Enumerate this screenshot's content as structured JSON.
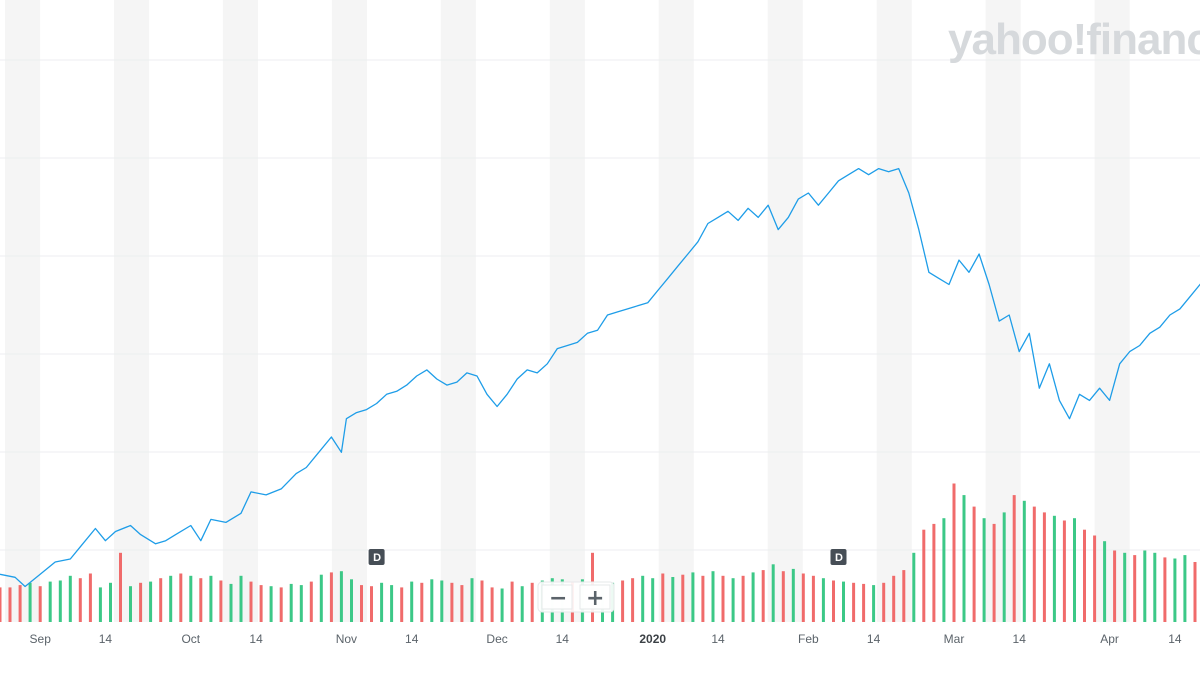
{
  "watermark": "yahoo!finance",
  "colors": {
    "price_line": "#1e9de8",
    "volume_up": "#3cc887",
    "volume_down": "#f06b6b",
    "band": "#f5f5f5",
    "grid": "#eceef0"
  },
  "controls": {
    "zoom_out": "−",
    "zoom_in": "+"
  },
  "events": [
    {
      "label": "D",
      "date": "2019-11-07"
    },
    {
      "label": "D",
      "date": "2020-02-07"
    }
  ],
  "chart_data": {
    "type": "line",
    "subtype": "price_with_volume",
    "title": "",
    "xlabel": "",
    "ylabel": "",
    "grid": true,
    "x_ticks": [
      {
        "label": "Sep",
        "date": "2019-09-01",
        "bold": false
      },
      {
        "label": "14",
        "date": "2019-09-14",
        "bold": false
      },
      {
        "label": "Oct",
        "date": "2019-10-01",
        "bold": false
      },
      {
        "label": "14",
        "date": "2019-10-14",
        "bold": false
      },
      {
        "label": "Nov",
        "date": "2019-11-01",
        "bold": false
      },
      {
        "label": "14",
        "date": "2019-11-14",
        "bold": false
      },
      {
        "label": "Dec",
        "date": "2019-12-01",
        "bold": false
      },
      {
        "label": "14",
        "date": "2019-12-14",
        "bold": false
      },
      {
        "label": "2020",
        "date": "2020-01-01",
        "bold": true
      },
      {
        "label": "14",
        "date": "2020-01-14",
        "bold": false
      },
      {
        "label": "Feb",
        "date": "2020-02-01",
        "bold": false
      },
      {
        "label": "14",
        "date": "2020-02-14",
        "bold": false
      },
      {
        "label": "Mar",
        "date": "2020-03-01",
        "bold": false
      },
      {
        "label": "14",
        "date": "2020-03-14",
        "bold": false
      },
      {
        "label": "Apr",
        "date": "2020-04-01",
        "bold": false
      },
      {
        "label": "14",
        "date": "2020-04-14",
        "bold": false
      }
    ],
    "price_series": [
      [
        "2019-08-24",
        0.075
      ],
      [
        "2019-08-27",
        0.07
      ],
      [
        "2019-08-29",
        0.055
      ],
      [
        "2019-09-01",
        0.075
      ],
      [
        "2019-09-04",
        0.095
      ],
      [
        "2019-09-07",
        0.1
      ],
      [
        "2019-09-09",
        0.12
      ],
      [
        "2019-09-12",
        0.15
      ],
      [
        "2019-09-14",
        0.13
      ],
      [
        "2019-09-16",
        0.145
      ],
      [
        "2019-09-19",
        0.155
      ],
      [
        "2019-09-21",
        0.14
      ],
      [
        "2019-09-24",
        0.125
      ],
      [
        "2019-09-26",
        0.13
      ],
      [
        "2019-09-28",
        0.14
      ],
      [
        "2019-10-01",
        0.155
      ],
      [
        "2019-10-03",
        0.13
      ],
      [
        "2019-10-05",
        0.165
      ],
      [
        "2019-10-08",
        0.16
      ],
      [
        "2019-10-11",
        0.175
      ],
      [
        "2019-10-13",
        0.21
      ],
      [
        "2019-10-16",
        0.205
      ],
      [
        "2019-10-19",
        0.215
      ],
      [
        "2019-10-22",
        0.24
      ],
      [
        "2019-10-24",
        0.25
      ],
      [
        "2019-10-26",
        0.27
      ],
      [
        "2019-10-29",
        0.3
      ],
      [
        "2019-10-31",
        0.275
      ],
      [
        "2019-11-01",
        0.33
      ],
      [
        "2019-11-03",
        0.34
      ],
      [
        "2019-11-05",
        0.345
      ],
      [
        "2019-11-07",
        0.355
      ],
      [
        "2019-11-09",
        0.37
      ],
      [
        "2019-11-11",
        0.375
      ],
      [
        "2019-11-13",
        0.385
      ],
      [
        "2019-11-15",
        0.4
      ],
      [
        "2019-11-17",
        0.41
      ],
      [
        "2019-11-19",
        0.395
      ],
      [
        "2019-11-21",
        0.385
      ],
      [
        "2019-11-23",
        0.39
      ],
      [
        "2019-11-25",
        0.405
      ],
      [
        "2019-11-27",
        0.4
      ],
      [
        "2019-11-29",
        0.37
      ],
      [
        "2019-12-01",
        0.35
      ],
      [
        "2019-12-03",
        0.37
      ],
      [
        "2019-12-05",
        0.395
      ],
      [
        "2019-12-07",
        0.41
      ],
      [
        "2019-12-09",
        0.405
      ],
      [
        "2019-12-11",
        0.42
      ],
      [
        "2019-12-13",
        0.445
      ],
      [
        "2019-12-15",
        0.45
      ],
      [
        "2019-12-17",
        0.455
      ],
      [
        "2019-12-19",
        0.47
      ],
      [
        "2019-12-21",
        0.475
      ],
      [
        "2019-12-23",
        0.5
      ],
      [
        "2019-12-25",
        0.505
      ],
      [
        "2019-12-27",
        0.51
      ],
      [
        "2019-12-29",
        0.515
      ],
      [
        "2019-12-31",
        0.52
      ],
      [
        "2020-01-02",
        0.54
      ],
      [
        "2020-01-04",
        0.56
      ],
      [
        "2020-01-06",
        0.58
      ],
      [
        "2020-01-08",
        0.6
      ],
      [
        "2020-01-10",
        0.62
      ],
      [
        "2020-01-12",
        0.65
      ],
      [
        "2020-01-14",
        0.66
      ],
      [
        "2020-01-16",
        0.67
      ],
      [
        "2020-01-18",
        0.655
      ],
      [
        "2020-01-20",
        0.675
      ],
      [
        "2020-01-22",
        0.66
      ],
      [
        "2020-01-24",
        0.68
      ],
      [
        "2020-01-26",
        0.64
      ],
      [
        "2020-01-28",
        0.66
      ],
      [
        "2020-01-30",
        0.69
      ],
      [
        "2020-02-01",
        0.7
      ],
      [
        "2020-02-03",
        0.68
      ],
      [
        "2020-02-05",
        0.7
      ],
      [
        "2020-02-07",
        0.72
      ],
      [
        "2020-02-09",
        0.73
      ],
      [
        "2020-02-11",
        0.74
      ],
      [
        "2020-02-13",
        0.73
      ],
      [
        "2020-02-15",
        0.74
      ],
      [
        "2020-02-17",
        0.735
      ],
      [
        "2020-02-19",
        0.74
      ],
      [
        "2020-02-21",
        0.7
      ],
      [
        "2020-02-23",
        0.64
      ],
      [
        "2020-02-25",
        0.57
      ],
      [
        "2020-02-27",
        0.56
      ],
      [
        "2020-02-29",
        0.55
      ],
      [
        "2020-03-02",
        0.59
      ],
      [
        "2020-03-04",
        0.57
      ],
      [
        "2020-03-06",
        0.6
      ],
      [
        "2020-03-08",
        0.55
      ],
      [
        "2020-03-10",
        0.49
      ],
      [
        "2020-03-12",
        0.5
      ],
      [
        "2020-03-14",
        0.44
      ],
      [
        "2020-03-16",
        0.47
      ],
      [
        "2020-03-18",
        0.38
      ],
      [
        "2020-03-20",
        0.42
      ],
      [
        "2020-03-22",
        0.36
      ],
      [
        "2020-03-24",
        0.33
      ],
      [
        "2020-03-26",
        0.37
      ],
      [
        "2020-03-28",
        0.36
      ],
      [
        "2020-03-30",
        0.38
      ],
      [
        "2020-04-01",
        0.36
      ],
      [
        "2020-04-03",
        0.42
      ],
      [
        "2020-04-05",
        0.44
      ],
      [
        "2020-04-07",
        0.45
      ],
      [
        "2020-04-09",
        0.47
      ],
      [
        "2020-04-11",
        0.48
      ],
      [
        "2020-04-13",
        0.5
      ],
      [
        "2020-04-15",
        0.51
      ],
      [
        "2020-04-17",
        0.53
      ],
      [
        "2020-04-19",
        0.55
      ],
      [
        "2020-04-21",
        0.57
      ],
      [
        "2020-04-22",
        0.6
      ]
    ],
    "price_range": [
      0,
      1
    ],
    "volume_series": [
      [
        "2019-08-24",
        0.03,
        "down"
      ],
      [
        "2019-08-26",
        0.03,
        "down"
      ],
      [
        "2019-08-28",
        0.032,
        "down"
      ],
      [
        "2019-08-30",
        0.034,
        "up"
      ],
      [
        "2019-09-01",
        0.031,
        "down"
      ],
      [
        "2019-09-03",
        0.035,
        "up"
      ],
      [
        "2019-09-05",
        0.036,
        "up"
      ],
      [
        "2019-09-07",
        0.04,
        "up"
      ],
      [
        "2019-09-09",
        0.038,
        "down"
      ],
      [
        "2019-09-11",
        0.042,
        "down"
      ],
      [
        "2019-09-13",
        0.03,
        "up"
      ],
      [
        "2019-09-15",
        0.034,
        "up"
      ],
      [
        "2019-09-17",
        0.06,
        "down"
      ],
      [
        "2019-09-19",
        0.031,
        "up"
      ],
      [
        "2019-09-21",
        0.034,
        "down"
      ],
      [
        "2019-09-23",
        0.035,
        "up"
      ],
      [
        "2019-09-25",
        0.038,
        "down"
      ],
      [
        "2019-09-27",
        0.04,
        "up"
      ],
      [
        "2019-09-29",
        0.042,
        "down"
      ],
      [
        "2019-10-01",
        0.04,
        "up"
      ],
      [
        "2019-10-03",
        0.038,
        "down"
      ],
      [
        "2019-10-05",
        0.04,
        "up"
      ],
      [
        "2019-10-07",
        0.036,
        "down"
      ],
      [
        "2019-10-09",
        0.033,
        "up"
      ],
      [
        "2019-10-11",
        0.04,
        "up"
      ],
      [
        "2019-10-13",
        0.035,
        "down"
      ],
      [
        "2019-10-15",
        0.032,
        "down"
      ],
      [
        "2019-10-17",
        0.031,
        "up"
      ],
      [
        "2019-10-19",
        0.03,
        "down"
      ],
      [
        "2019-10-21",
        0.033,
        "up"
      ],
      [
        "2019-10-23",
        0.032,
        "up"
      ],
      [
        "2019-10-25",
        0.035,
        "down"
      ],
      [
        "2019-10-27",
        0.041,
        "up"
      ],
      [
        "2019-10-29",
        0.043,
        "down"
      ],
      [
        "2019-10-31",
        0.044,
        "up"
      ],
      [
        "2019-11-02",
        0.037,
        "up"
      ],
      [
        "2019-11-04",
        0.032,
        "down"
      ],
      [
        "2019-11-06",
        0.031,
        "down"
      ],
      [
        "2019-11-08",
        0.034,
        "up"
      ],
      [
        "2019-11-10",
        0.032,
        "up"
      ],
      [
        "2019-11-12",
        0.03,
        "down"
      ],
      [
        "2019-11-14",
        0.035,
        "up"
      ],
      [
        "2019-11-16",
        0.034,
        "down"
      ],
      [
        "2019-11-18",
        0.037,
        "up"
      ],
      [
        "2019-11-20",
        0.036,
        "up"
      ],
      [
        "2019-11-22",
        0.034,
        "down"
      ],
      [
        "2019-11-24",
        0.032,
        "down"
      ],
      [
        "2019-11-26",
        0.038,
        "up"
      ],
      [
        "2019-11-28",
        0.036,
        "down"
      ],
      [
        "2019-11-30",
        0.03,
        "down"
      ],
      [
        "2019-12-02",
        0.029,
        "up"
      ],
      [
        "2019-12-04",
        0.035,
        "down"
      ],
      [
        "2019-12-06",
        0.031,
        "up"
      ],
      [
        "2019-12-08",
        0.034,
        "down"
      ],
      [
        "2019-12-10",
        0.036,
        "up"
      ],
      [
        "2019-12-12",
        0.038,
        "up"
      ],
      [
        "2019-12-14",
        0.037,
        "up"
      ],
      [
        "2019-12-16",
        0.035,
        "down"
      ],
      [
        "2019-12-18",
        0.037,
        "up"
      ],
      [
        "2019-12-20",
        0.06,
        "down"
      ],
      [
        "2019-12-22",
        0.03,
        "up"
      ],
      [
        "2019-12-24",
        0.034,
        "up"
      ],
      [
        "2019-12-26",
        0.036,
        "down"
      ],
      [
        "2019-12-28",
        0.038,
        "down"
      ],
      [
        "2019-12-30",
        0.04,
        "up"
      ],
      [
        "2020-01-01",
        0.038,
        "up"
      ],
      [
        "2020-01-03",
        0.042,
        "down"
      ],
      [
        "2020-01-05",
        0.039,
        "up"
      ],
      [
        "2020-01-07",
        0.041,
        "down"
      ],
      [
        "2020-01-09",
        0.043,
        "up"
      ],
      [
        "2020-01-11",
        0.04,
        "down"
      ],
      [
        "2020-01-13",
        0.044,
        "up"
      ],
      [
        "2020-01-15",
        0.04,
        "down"
      ],
      [
        "2020-01-17",
        0.038,
        "up"
      ],
      [
        "2020-01-19",
        0.04,
        "down"
      ],
      [
        "2020-01-21",
        0.043,
        "up"
      ],
      [
        "2020-01-23",
        0.045,
        "down"
      ],
      [
        "2020-01-25",
        0.05,
        "up"
      ],
      [
        "2020-01-27",
        0.044,
        "down"
      ],
      [
        "2020-01-29",
        0.046,
        "up"
      ],
      [
        "2020-01-31",
        0.042,
        "down"
      ],
      [
        "2020-02-02",
        0.04,
        "down"
      ],
      [
        "2020-02-04",
        0.038,
        "up"
      ],
      [
        "2020-02-06",
        0.036,
        "down"
      ],
      [
        "2020-02-08",
        0.035,
        "up"
      ],
      [
        "2020-02-10",
        0.034,
        "down"
      ],
      [
        "2020-02-12",
        0.033,
        "down"
      ],
      [
        "2020-02-14",
        0.032,
        "up"
      ],
      [
        "2020-02-16",
        0.034,
        "down"
      ],
      [
        "2020-02-18",
        0.04,
        "down"
      ],
      [
        "2020-02-20",
        0.045,
        "down"
      ],
      [
        "2020-02-22",
        0.06,
        "up"
      ],
      [
        "2020-02-24",
        0.08,
        "down"
      ],
      [
        "2020-02-26",
        0.085,
        "down"
      ],
      [
        "2020-02-28",
        0.09,
        "up"
      ],
      [
        "2020-03-01",
        0.12,
        "down"
      ],
      [
        "2020-03-03",
        0.11,
        "up"
      ],
      [
        "2020-03-05",
        0.1,
        "down"
      ],
      [
        "2020-03-07",
        0.09,
        "up"
      ],
      [
        "2020-03-09",
        0.085,
        "down"
      ],
      [
        "2020-03-11",
        0.095,
        "up"
      ],
      [
        "2020-03-13",
        0.11,
        "down"
      ],
      [
        "2020-03-15",
        0.105,
        "up"
      ],
      [
        "2020-03-17",
        0.1,
        "down"
      ],
      [
        "2020-03-19",
        0.095,
        "down"
      ],
      [
        "2020-03-21",
        0.092,
        "up"
      ],
      [
        "2020-03-23",
        0.088,
        "down"
      ],
      [
        "2020-03-25",
        0.09,
        "up"
      ],
      [
        "2020-03-27",
        0.08,
        "down"
      ],
      [
        "2020-03-29",
        0.075,
        "down"
      ],
      [
        "2020-03-31",
        0.07,
        "up"
      ],
      [
        "2020-04-02",
        0.062,
        "down"
      ],
      [
        "2020-04-04",
        0.06,
        "up"
      ],
      [
        "2020-04-06",
        0.058,
        "down"
      ],
      [
        "2020-04-08",
        0.062,
        "up"
      ],
      [
        "2020-04-10",
        0.06,
        "up"
      ],
      [
        "2020-04-12",
        0.056,
        "down"
      ],
      [
        "2020-04-14",
        0.055,
        "up"
      ],
      [
        "2020-04-16",
        0.058,
        "up"
      ],
      [
        "2020-04-18",
        0.052,
        "down"
      ],
      [
        "2020-04-20",
        0.054,
        "up"
      ],
      [
        "2020-04-22",
        0.05,
        "up"
      ]
    ],
    "volume_range": [
      0,
      0.13
    ]
  }
}
